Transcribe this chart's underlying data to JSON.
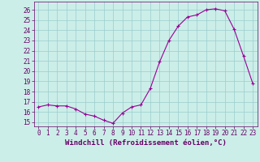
{
  "x": [
    0,
    1,
    2,
    3,
    4,
    5,
    6,
    7,
    8,
    9,
    10,
    11,
    12,
    13,
    14,
    15,
    16,
    17,
    18,
    19,
    20,
    21,
    22,
    23
  ],
  "y": [
    16.5,
    16.7,
    16.6,
    16.6,
    16.3,
    15.8,
    15.6,
    15.2,
    14.9,
    15.9,
    16.5,
    16.7,
    18.3,
    20.9,
    23.0,
    24.4,
    25.3,
    25.5,
    26.0,
    26.1,
    25.9,
    24.1,
    21.5,
    18.8
  ],
  "ylim": [
    14.6,
    26.8
  ],
  "xlim": [
    -0.5,
    23.5
  ],
  "yticks": [
    15,
    16,
    17,
    18,
    19,
    20,
    21,
    22,
    23,
    24,
    25,
    26
  ],
  "xticks": [
    0,
    1,
    2,
    3,
    4,
    5,
    6,
    7,
    8,
    9,
    10,
    11,
    12,
    13,
    14,
    15,
    16,
    17,
    18,
    19,
    20,
    21,
    22,
    23
  ],
  "xlabel": "Windchill (Refroidissement éolien,°C)",
  "line_color": "#990099",
  "marker": "+",
  "marker_size": 3.5,
  "line_width": 0.8,
  "bg_color": "#cceee8",
  "grid_color": "#99cccc",
  "tick_color": "#660066",
  "label_color": "#660066",
  "xlabel_fontsize": 6.5,
  "tick_fontsize": 5.5
}
